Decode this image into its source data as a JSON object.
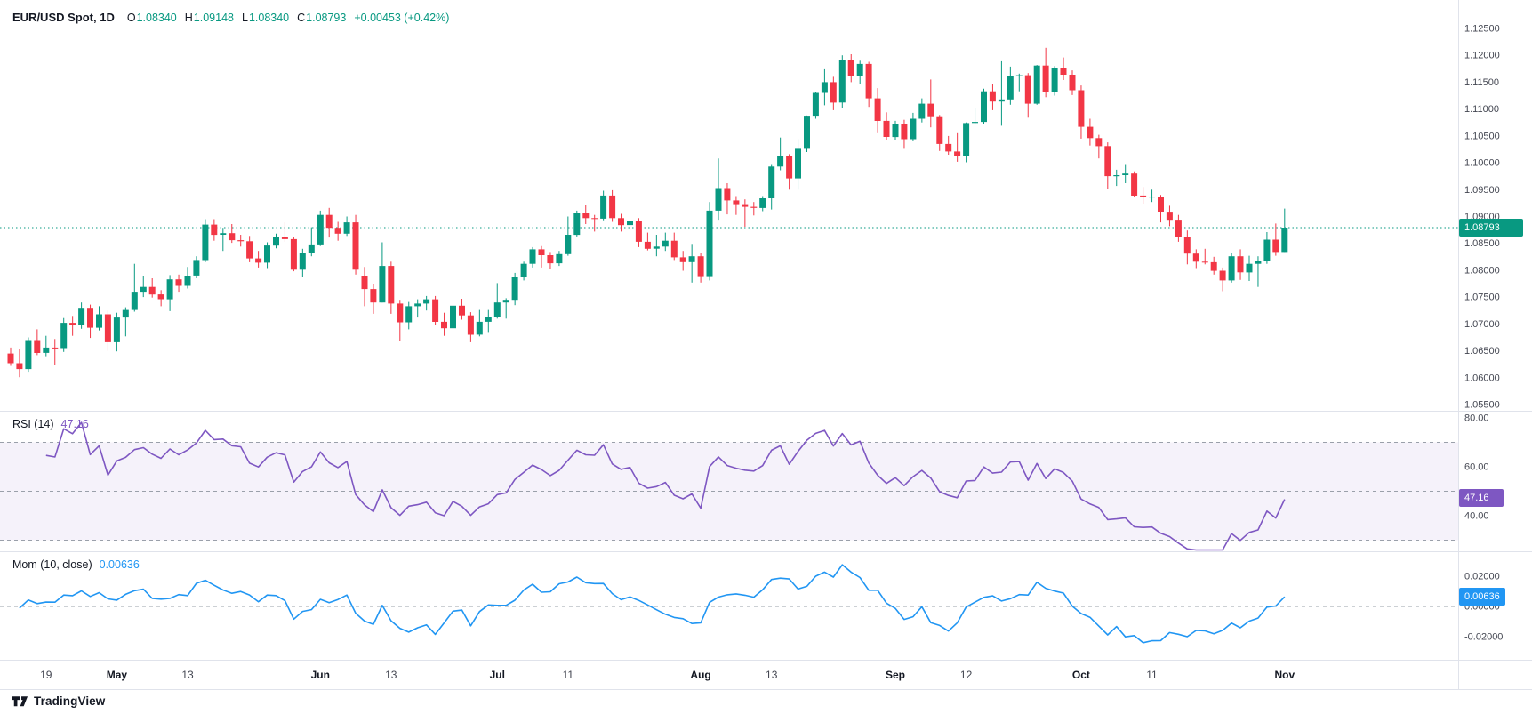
{
  "header": {
    "symbol": "EUR/USD Spot, 1D",
    "o_label": "O",
    "o": "1.08340",
    "h_label": "H",
    "h": "1.09148",
    "l_label": "L",
    "l": "1.08340",
    "c_label": "C",
    "c": "1.08793",
    "change": "+0.00453 (+0.42%)"
  },
  "panes": {
    "rsi": {
      "title": "RSI (14)",
      "value": "47.16"
    },
    "mom": {
      "title": "Mom (10, close)",
      "value": "0.00636"
    }
  },
  "badges": {
    "price": "1.08793",
    "rsi": "47.16",
    "mom": "0.00636"
  },
  "footer": {
    "brand": "TradingView"
  },
  "colors": {
    "up": "#089981",
    "down": "#f23645",
    "rsi": "#7e57c2",
    "mom": "#2196f3",
    "axis_text": "#434651",
    "month_text": "#131722",
    "separator": "#e0e3eb",
    "level_dash": "#9aa0aa",
    "text": "#131722"
  },
  "chart_data": {
    "type": "candlestick",
    "title": "EUR/USD Spot, 1D",
    "symbol": "EUR/USD Spot",
    "interval": "1D",
    "last_price": 1.08793,
    "price_axis": {
      "ticks": [
        "1.12500",
        "1.12000",
        "1.11500",
        "1.11000",
        "1.10500",
        "1.10000",
        "1.09500",
        "1.09000",
        "1.08500",
        "1.08000",
        "1.07500",
        "1.07000",
        "1.06500",
        "1.06000",
        "1.05500"
      ],
      "range": [
        1.0539,
        1.1303
      ]
    },
    "time_axis": [
      {
        "label": "19",
        "i": 4
      },
      {
        "label": "May",
        "i": 12,
        "major": true
      },
      {
        "label": "13",
        "i": 20
      },
      {
        "label": "Jun",
        "i": 35,
        "major": true
      },
      {
        "label": "13",
        "i": 43
      },
      {
        "label": "Jul",
        "i": 55,
        "major": true
      },
      {
        "label": "11",
        "i": 63
      },
      {
        "label": "Aug",
        "i": 78,
        "major": true
      },
      {
        "label": "13",
        "i": 86
      },
      {
        "label": "Sep",
        "i": 100,
        "major": true
      },
      {
        "label": "12",
        "i": 108
      },
      {
        "label": "Oct",
        "i": 121,
        "major": true
      },
      {
        "label": "11",
        "i": 129
      },
      {
        "label": "Nov",
        "i": 144,
        "major": true
      }
    ],
    "indicators": [
      {
        "type": "rsi",
        "name": "RSI (14)",
        "period": 14,
        "source": "close",
        "last": 47.16,
        "color": "#7e57c2",
        "band": [
          30,
          70
        ],
        "levels": [
          70,
          50,
          30
        ],
        "axis_ticks": [
          "80.00",
          "60.00",
          "40.00"
        ],
        "range": [
          25.5,
          82.9
        ]
      },
      {
        "type": "momentum",
        "name": "Mom (10, close)",
        "period": 10,
        "source": "close",
        "last": 0.00636,
        "color": "#2196f3",
        "levels": [
          0
        ],
        "axis_ticks": [
          "0.02000",
          "0.00000",
          "-0.02000"
        ],
        "range": [
          -0.0353,
          0.0365
        ]
      }
    ],
    "dates": [
      "2024-04-15",
      "2024-04-16",
      "2024-04-17",
      "2024-04-18",
      "2024-04-19",
      "2024-04-22",
      "2024-04-23",
      "2024-04-24",
      "2024-04-25",
      "2024-04-26",
      "2024-04-29",
      "2024-04-30",
      "2024-05-01",
      "2024-05-02",
      "2024-05-03",
      "2024-05-06",
      "2024-05-07",
      "2024-05-08",
      "2024-05-09",
      "2024-05-10",
      "2024-05-13",
      "2024-05-14",
      "2024-05-15",
      "2024-05-16",
      "2024-05-17",
      "2024-05-20",
      "2024-05-21",
      "2024-05-22",
      "2024-05-23",
      "2024-05-24",
      "2024-05-27",
      "2024-05-28",
      "2024-05-29",
      "2024-05-30",
      "2024-05-31",
      "2024-06-03",
      "2024-06-04",
      "2024-06-05",
      "2024-06-06",
      "2024-06-07",
      "2024-06-10",
      "2024-06-11",
      "2024-06-12",
      "2024-06-13",
      "2024-06-14",
      "2024-06-17",
      "2024-06-18",
      "2024-06-19",
      "2024-06-20",
      "2024-06-21",
      "2024-06-24",
      "2024-06-25",
      "2024-06-26",
      "2024-06-27",
      "2024-06-28",
      "2024-07-01",
      "2024-07-02",
      "2024-07-03",
      "2024-07-04",
      "2024-07-05",
      "2024-07-08",
      "2024-07-09",
      "2024-07-10",
      "2024-07-11",
      "2024-07-12",
      "2024-07-15",
      "2024-07-16",
      "2024-07-17",
      "2024-07-18",
      "2024-07-19",
      "2024-07-22",
      "2024-07-23",
      "2024-07-24",
      "2024-07-25",
      "2024-07-26",
      "2024-07-29",
      "2024-07-30",
      "2024-07-31",
      "2024-08-01",
      "2024-08-02",
      "2024-08-05",
      "2024-08-06",
      "2024-08-07",
      "2024-08-08",
      "2024-08-09",
      "2024-08-12",
      "2024-08-13",
      "2024-08-14",
      "2024-08-15",
      "2024-08-16",
      "2024-08-19",
      "2024-08-20",
      "2024-08-21",
      "2024-08-22",
      "2024-08-23",
      "2024-08-26",
      "2024-08-27",
      "2024-08-28",
      "2024-08-29",
      "2024-08-30",
      "2024-09-02",
      "2024-09-03",
      "2024-09-04",
      "2024-09-05",
      "2024-09-06",
      "2024-09-09",
      "2024-09-10",
      "2024-09-11",
      "2024-09-12",
      "2024-09-13",
      "2024-09-16",
      "2024-09-17",
      "2024-09-18",
      "2024-09-19",
      "2024-09-20",
      "2024-09-23",
      "2024-09-24",
      "2024-09-25",
      "2024-09-26",
      "2024-09-27",
      "2024-09-30",
      "2024-10-01",
      "2024-10-02",
      "2024-10-03",
      "2024-10-04",
      "2024-10-07",
      "2024-10-08",
      "2024-10-09",
      "2024-10-10",
      "2024-10-11",
      "2024-10-14",
      "2024-10-15",
      "2024-10-16",
      "2024-10-17",
      "2024-10-18",
      "2024-10-21",
      "2024-10-22",
      "2024-10-23",
      "2024-10-24",
      "2024-10-25",
      "2024-10-28",
      "2024-10-29",
      "2024-10-30",
      "2024-10-31",
      "2024-11-01"
    ],
    "ohlc": [
      [
        1.0645,
        1.0656,
        1.0622,
        1.0627
      ],
      [
        1.0627,
        1.0654,
        1.0601,
        1.0616
      ],
      [
        1.0616,
        1.0675,
        1.0611,
        1.067
      ],
      [
        1.067,
        1.069,
        1.0642,
        1.0646
      ],
      [
        1.0646,
        1.0678,
        1.064,
        1.0656
      ],
      [
        1.0656,
        1.0672,
        1.0623,
        1.0655
      ],
      [
        1.0655,
        1.0711,
        1.0648,
        1.0702
      ],
      [
        1.0702,
        1.0715,
        1.0678,
        1.0698
      ],
      [
        1.0698,
        1.074,
        1.0691,
        1.073
      ],
      [
        1.073,
        1.0736,
        1.0674,
        1.0693
      ],
      [
        1.0693,
        1.0733,
        1.0688,
        1.0718
      ],
      [
        1.0718,
        1.0725,
        1.065,
        1.0666
      ],
      [
        1.0666,
        1.0721,
        1.0649,
        1.0712
      ],
      [
        1.0712,
        1.0731,
        1.0677,
        1.0726
      ],
      [
        1.0726,
        1.0812,
        1.0723,
        1.076
      ],
      [
        1.076,
        1.079,
        1.075,
        1.0769
      ],
      [
        1.0769,
        1.0785,
        1.0749,
        1.0755
      ],
      [
        1.0755,
        1.0763,
        1.0733,
        1.0746
      ],
      [
        1.0746,
        1.0791,
        1.0724,
        1.0783
      ],
      [
        1.0783,
        1.0792,
        1.076,
        1.0771
      ],
      [
        1.0771,
        1.0806,
        1.0766,
        1.079
      ],
      [
        1.079,
        1.0826,
        1.0785,
        1.0819
      ],
      [
        1.0819,
        1.0895,
        1.0815,
        1.0885
      ],
      [
        1.0885,
        1.0895,
        1.0855,
        1.0866
      ],
      [
        1.0866,
        1.0879,
        1.0836,
        1.0869
      ],
      [
        1.0869,
        1.0886,
        1.0851,
        1.0856
      ],
      [
        1.0856,
        1.0866,
        1.0844,
        1.0854
      ],
      [
        1.0854,
        1.0864,
        1.0815,
        1.0822
      ],
      [
        1.0822,
        1.0836,
        1.0805,
        1.0814
      ],
      [
        1.0814,
        1.0852,
        1.0804,
        1.0846
      ],
      [
        1.0846,
        1.0868,
        1.0841,
        1.0862
      ],
      [
        1.0862,
        1.0889,
        1.0853,
        1.0858
      ],
      [
        1.0858,
        1.0862,
        1.0798,
        1.0801
      ],
      [
        1.0801,
        1.084,
        1.0788,
        1.0833
      ],
      [
        1.0833,
        1.088,
        1.0826,
        1.0848
      ],
      [
        1.0848,
        1.0911,
        1.0845,
        1.0903
      ],
      [
        1.0903,
        1.0916,
        1.0861,
        1.0879
      ],
      [
        1.0879,
        1.089,
        1.0855,
        1.0868
      ],
      [
        1.0868,
        1.09,
        1.0864,
        1.0889
      ],
      [
        1.0889,
        1.0903,
        1.0792,
        1.0801
      ],
      [
        1.079,
        1.0806,
        1.0733,
        1.0765
      ],
      [
        1.0765,
        1.0775,
        1.0719,
        1.074
      ],
      [
        1.074,
        1.0852,
        1.074,
        1.0808
      ],
      [
        1.0808,
        1.0816,
        1.0719,
        1.0738
      ],
      [
        1.0738,
        1.0745,
        1.0668,
        1.0703
      ],
      [
        1.0703,
        1.0741,
        1.069,
        1.0733
      ],
      [
        1.0733,
        1.0746,
        1.0712,
        1.0738
      ],
      [
        1.0738,
        1.0752,
        1.0725,
        1.0746
      ],
      [
        1.0746,
        1.0752,
        1.0699,
        1.0704
      ],
      [
        1.0704,
        1.0721,
        1.0678,
        1.0692
      ],
      [
        1.0692,
        1.0746,
        1.0689,
        1.0734
      ],
      [
        1.0734,
        1.0747,
        1.0708,
        1.0716
      ],
      [
        1.0716,
        1.0722,
        1.0666,
        1.068
      ],
      [
        1.068,
        1.0726,
        1.0677,
        1.0704
      ],
      [
        1.0704,
        1.0726,
        1.0685,
        1.0713
      ],
      [
        1.0713,
        1.0776,
        1.071,
        1.074
      ],
      [
        1.074,
        1.0748,
        1.071,
        1.0745
      ],
      [
        1.0745,
        1.0795,
        1.0735,
        1.0787
      ],
      [
        1.0787,
        1.0816,
        1.0781,
        1.0812
      ],
      [
        1.0812,
        1.0843,
        1.0805,
        1.0839
      ],
      [
        1.0839,
        1.0845,
        1.0805,
        1.0828
      ],
      [
        1.0828,
        1.0834,
        1.0803,
        1.0813
      ],
      [
        1.0813,
        1.0836,
        1.0808,
        1.083
      ],
      [
        1.083,
        1.09,
        1.0827,
        1.0866
      ],
      [
        1.0866,
        1.0911,
        1.0863,
        1.0907
      ],
      [
        1.0907,
        1.0922,
        1.0886,
        1.0897
      ],
      [
        1.0897,
        1.0903,
        1.0872,
        1.0896
      ],
      [
        1.0896,
        1.0948,
        1.0893,
        1.0939
      ],
      [
        1.0939,
        1.0949,
        1.089,
        1.0897
      ],
      [
        1.0897,
        1.0905,
        1.0872,
        1.0884
      ],
      [
        1.0884,
        1.0903,
        1.0872,
        1.0891
      ],
      [
        1.0891,
        1.0897,
        1.0843,
        1.0853
      ],
      [
        1.0853,
        1.087,
        1.0837,
        1.084
      ],
      [
        1.084,
        1.0866,
        1.0826,
        1.0844
      ],
      [
        1.0844,
        1.087,
        1.0836,
        1.0855
      ],
      [
        1.0855,
        1.087,
        1.0819,
        1.0824
      ],
      [
        1.0824,
        1.0836,
        1.0799,
        1.0815
      ],
      [
        1.0815,
        1.0849,
        1.0777,
        1.0826
      ],
      [
        1.0826,
        1.0833,
        1.0777,
        1.0789
      ],
      [
        1.0789,
        1.0927,
        1.0781,
        1.0911
      ],
      [
        1.0911,
        1.1008,
        1.0894,
        1.0953
      ],
      [
        1.0953,
        1.0962,
        1.0904,
        1.093
      ],
      [
        1.093,
        1.0938,
        1.0903,
        1.0923
      ],
      [
        1.0923,
        1.0932,
        1.0881,
        1.0918
      ],
      [
        1.0918,
        1.0927,
        1.0902,
        1.0916
      ],
      [
        1.0916,
        1.0938,
        1.091,
        1.0934
      ],
      [
        1.0934,
        1.0996,
        1.0913,
        1.0993
      ],
      [
        1.0993,
        1.1047,
        1.0986,
        1.1013
      ],
      [
        1.1013,
        1.1016,
        1.095,
        1.0971
      ],
      [
        1.0971,
        1.1044,
        1.095,
        1.1026
      ],
      [
        1.1026,
        1.1088,
        1.102,
        1.1086
      ],
      [
        1.1086,
        1.1132,
        1.1082,
        1.113
      ],
      [
        1.113,
        1.1174,
        1.1107,
        1.115
      ],
      [
        1.115,
        1.116,
        1.1098,
        1.1112
      ],
      [
        1.1112,
        1.12,
        1.1101,
        1.1192
      ],
      [
        1.1192,
        1.1202,
        1.115,
        1.1161
      ],
      [
        1.1161,
        1.119,
        1.1147,
        1.1184
      ],
      [
        1.1184,
        1.1188,
        1.1104,
        1.112
      ],
      [
        1.112,
        1.1139,
        1.1055,
        1.1078
      ],
      [
        1.1078,
        1.1094,
        1.1043,
        1.1048
      ],
      [
        1.1048,
        1.1078,
        1.1042,
        1.1073
      ],
      [
        1.1073,
        1.108,
        1.1026,
        1.1044
      ],
      [
        1.1044,
        1.1093,
        1.104,
        1.1082
      ],
      [
        1.1082,
        1.112,
        1.1075,
        1.111
      ],
      [
        1.111,
        1.1155,
        1.1066,
        1.1085
      ],
      [
        1.1085,
        1.1089,
        1.1022,
        1.1035
      ],
      [
        1.1035,
        1.105,
        1.1015,
        1.1021
      ],
      [
        1.1021,
        1.1055,
        1.1002,
        1.1012
      ],
      [
        1.1012,
        1.1075,
        1.1001,
        1.1074
      ],
      [
        1.1074,
        1.1102,
        1.1071,
        1.1076
      ],
      [
        1.1076,
        1.1138,
        1.1072,
        1.1133
      ],
      [
        1.1133,
        1.1146,
        1.1098,
        1.1114
      ],
      [
        1.1114,
        1.1189,
        1.1069,
        1.1118
      ],
      [
        1.1118,
        1.1179,
        1.1108,
        1.1161
      ],
      [
        1.1161,
        1.1166,
        1.1133,
        1.1163
      ],
      [
        1.1163,
        1.1167,
        1.1084,
        1.111
      ],
      [
        1.111,
        1.1182,
        1.1108,
        1.1181
      ],
      [
        1.1181,
        1.1214,
        1.1122,
        1.1132
      ],
      [
        1.1132,
        1.118,
        1.1125,
        1.1176
      ],
      [
        1.1176,
        1.1196,
        1.1154,
        1.1164
      ],
      [
        1.1164,
        1.1172,
        1.1126,
        1.1135
      ],
      [
        1.1135,
        1.1144,
        1.1045,
        1.1067
      ],
      [
        1.1067,
        1.1082,
        1.1032,
        1.1046
      ],
      [
        1.1046,
        1.1052,
        1.1008,
        1.1031
      ],
      [
        1.1031,
        1.1038,
        1.0951,
        1.0975
      ],
      [
        1.0975,
        1.0987,
        1.0957,
        1.0977
      ],
      [
        1.0977,
        1.0996,
        1.0962,
        1.098
      ],
      [
        1.098,
        1.0984,
        1.0936,
        1.0939
      ],
      [
        1.0939,
        1.0955,
        1.0924,
        1.0936
      ],
      [
        1.0936,
        1.095,
        1.0927,
        1.0937
      ],
      [
        1.0937,
        1.094,
        1.0889,
        1.0909
      ],
      [
        1.0909,
        1.092,
        1.0882,
        1.0894
      ],
      [
        1.0894,
        1.0903,
        1.0853,
        1.0862
      ],
      [
        1.0862,
        1.0874,
        1.0811,
        1.0831
      ],
      [
        1.0831,
        1.0839,
        1.0804,
        1.0816
      ],
      [
        1.0816,
        1.084,
        1.0811,
        1.0815
      ],
      [
        1.0815,
        1.0825,
        1.0792,
        1.0799
      ],
      [
        1.0799,
        1.0805,
        1.0761,
        1.0781
      ],
      [
        1.0781,
        1.0832,
        1.0777,
        1.0826
      ],
      [
        1.0826,
        1.0839,
        1.0782,
        1.0796
      ],
      [
        1.0796,
        1.0827,
        1.078,
        1.0812
      ],
      [
        1.0812,
        1.0826,
        1.0769,
        1.0817
      ],
      [
        1.0817,
        1.0871,
        1.0812,
        1.0857
      ],
      [
        1.0857,
        1.0887,
        1.0827,
        1.0834
      ],
      [
        1.0834,
        1.09148,
        1.0834,
        1.08793
      ]
    ]
  }
}
